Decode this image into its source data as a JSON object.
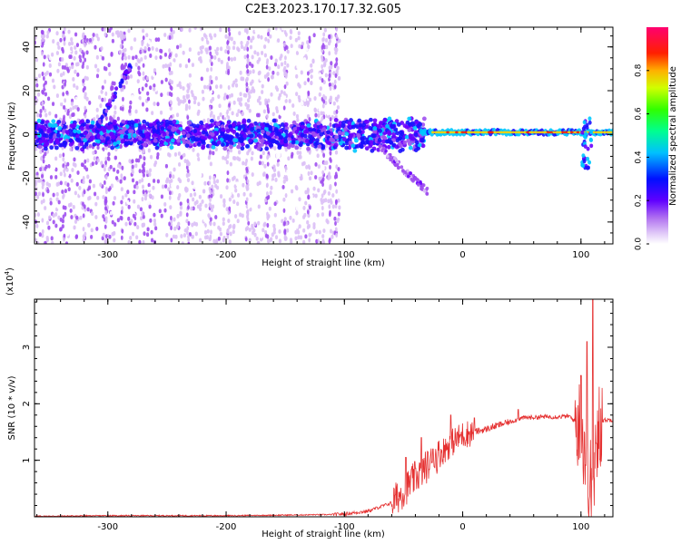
{
  "title": "C2E3.2023.170.17.32.G05",
  "colors": {
    "snr_line": "#e53030",
    "frame": "#000000"
  },
  "chart_data": [
    {
      "type": "heatmap",
      "xlabel": "Height of straight line (km)",
      "ylabel": "Frequency (Hz)",
      "xlim": [
        -362,
        127
      ],
      "ylim": [
        -50,
        49
      ],
      "x_ticks": [
        -300,
        -200,
        -100,
        0,
        100
      ],
      "y_ticks": [
        -40,
        -20,
        0,
        20,
        40
      ],
      "colorbar": {
        "label": "Normalized spectral amplitude",
        "range": [
          0,
          1
        ],
        "ticks": [
          "0.0",
          "0.2",
          "0.4",
          "0.6",
          "0.8"
        ],
        "colormap": [
          "#ffffff",
          "#d8b8f0",
          "#8000ff",
          "#0000ff",
          "#00e0ff",
          "#00ff40",
          "#ffff00",
          "#ff0000",
          "#ff0080"
        ]
      },
      "features": [
        {
          "name": "main band",
          "x": [
            -362,
            127
          ],
          "y": 0
        },
        {
          "name": "rising streak",
          "x": [
            -318,
            -280
          ],
          "y": [
            -5,
            32
          ]
        },
        {
          "name": "strong carrier",
          "x": [
            -35,
            127
          ],
          "y": 1
        }
      ]
    },
    {
      "type": "line",
      "xlabel": "Height of straight line (km)",
      "ylabel": "SNR (10 * v/v)",
      "y_multiplier": "(x10",
      "y_multiplier_exp": "4",
      "y_multiplier_close": ")",
      "xlim": [
        -362,
        127
      ],
      "ylim": [
        0,
        3.85
      ],
      "x_ticks": [
        -300,
        -200,
        -100,
        0,
        100
      ],
      "y_ticks": [
        1,
        2,
        3
      ],
      "series": [
        {
          "points": [
            [
              -362,
              0.01
            ],
            [
              -300,
              0.02
            ],
            [
              -200,
              0.02
            ],
            [
              -150,
              0.03
            ],
            [
              -110,
              0.04
            ],
            [
              -100,
              0.05
            ],
            [
              -80,
              0.1
            ],
            [
              -60,
              0.25
            ],
            [
              -50,
              0.45
            ],
            [
              -40,
              0.7
            ],
            [
              -30,
              0.9
            ],
            [
              -20,
              1.1
            ],
            [
              -10,
              1.3
            ],
            [
              0,
              1.45
            ],
            [
              10,
              1.5
            ],
            [
              20,
              1.55
            ],
            [
              30,
              1.62
            ],
            [
              40,
              1.68
            ],
            [
              50,
              1.75
            ],
            [
              60,
              1.76
            ],
            [
              70,
              1.77
            ],
            [
              80,
              1.77
            ],
            [
              90,
              1.78
            ],
            [
              100,
              1.6
            ],
            [
              105,
              1.0
            ],
            [
              110,
              0.2
            ],
            [
              115,
              1.7
            ],
            [
              127,
              1.72
            ]
          ],
          "peaks": [
            [
              -48,
              1.05
            ],
            [
              -35,
              1.4
            ],
            [
              -25,
              1.2
            ],
            [
              -10,
              1.8
            ],
            [
              10,
              1.75
            ],
            [
              47,
              1.9
            ],
            [
              100,
              2.5
            ],
            [
              105,
              3.1
            ],
            [
              110,
              3.85
            ],
            [
              113,
              1.3
            ]
          ]
        }
      ]
    }
  ]
}
